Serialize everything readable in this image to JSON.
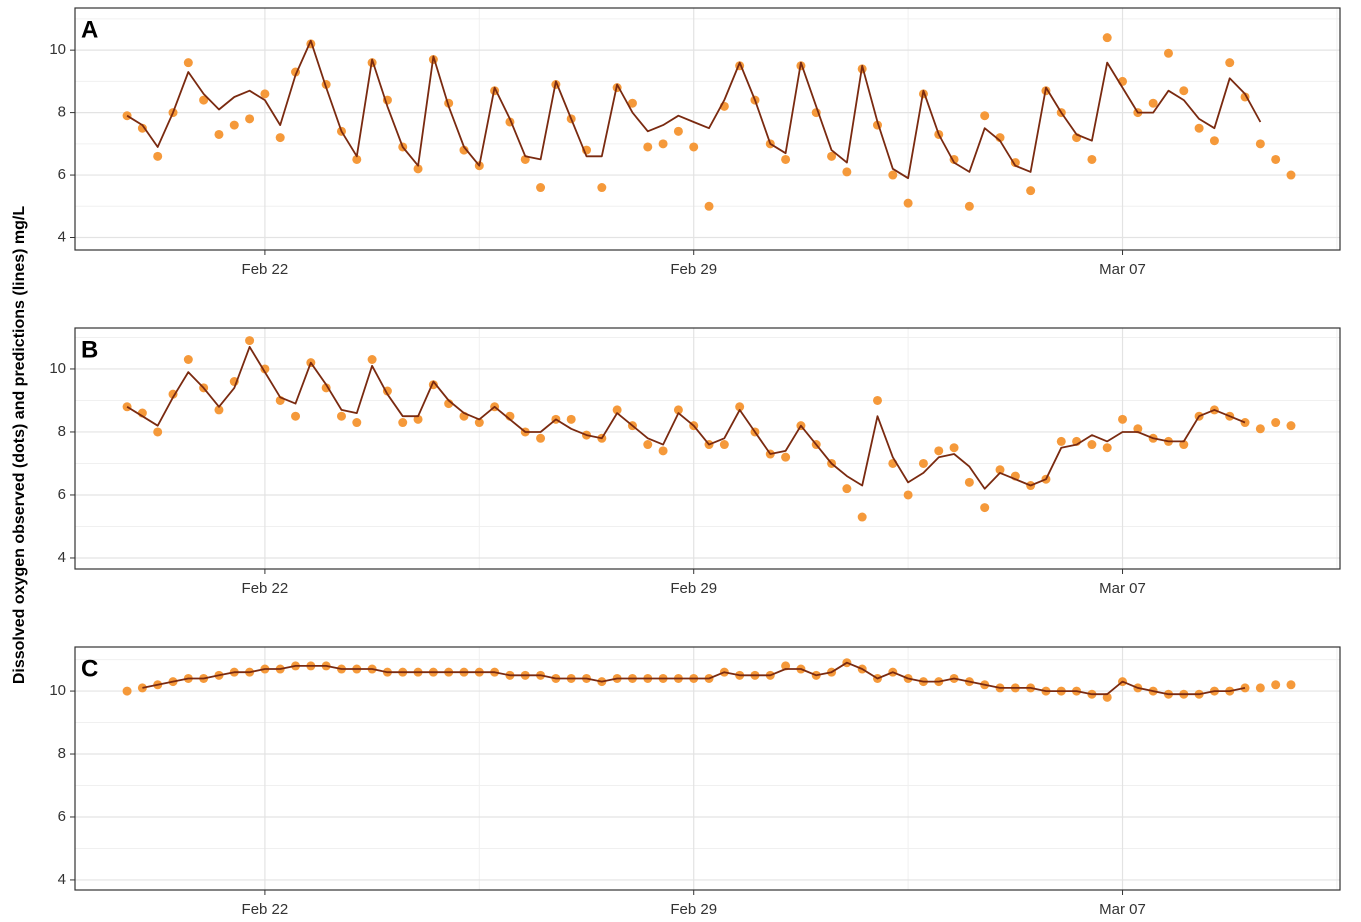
{
  "ylabel": "Dissolved oxygen observed (dots) and predictions (lines) mg/L",
  "chart_data": [
    {
      "type": "line",
      "label": "A",
      "xlim": [
        18.9,
        39.55
      ],
      "xticks": [
        {
          "value": 22,
          "label": "Feb 22"
        },
        {
          "value": 29,
          "label": "Feb 29"
        },
        {
          "value": 36,
          "label": "Mar 07"
        }
      ],
      "xminor": [
        25.5,
        32.5,
        39.5
      ],
      "ylim": [
        3.6,
        11.35
      ],
      "yticks": [
        4,
        6,
        8,
        10
      ],
      "yminor": [
        5,
        7,
        9,
        11
      ],
      "grid": true,
      "x": [
        19.75,
        20,
        20.25,
        20.5,
        20.75,
        21,
        21.25,
        21.5,
        21.75,
        22,
        22.25,
        22.5,
        22.75,
        23,
        23.25,
        23.5,
        23.75,
        24,
        24.25,
        24.5,
        24.75,
        25,
        25.25,
        25.5,
        25.75,
        26,
        26.25,
        26.5,
        26.75,
        27,
        27.25,
        27.5,
        27.75,
        28,
        28.25,
        28.5,
        28.75,
        29,
        29.25,
        29.5,
        29.75,
        30,
        30.25,
        30.5,
        30.75,
        31,
        31.25,
        31.5,
        31.75,
        32,
        32.25,
        32.5,
        32.75,
        33,
        33.25,
        33.5,
        33.75,
        34,
        34.25,
        34.5,
        34.75,
        35,
        35.25,
        35.5,
        35.75,
        36,
        36.25,
        36.5,
        36.75,
        37,
        37.25,
        37.5,
        37.75,
        38,
        38.25,
        38.5,
        38.75
      ],
      "series": [
        {
          "mode": "markers",
          "color": "#f5993a",
          "values": [
            7.9,
            7.5,
            6.6,
            8.0,
            9.6,
            8.4,
            7.3,
            7.6,
            7.8,
            8.6,
            7.2,
            9.3,
            10.2,
            8.9,
            7.4,
            6.5,
            9.6,
            8.4,
            6.9,
            6.2,
            9.7,
            8.3,
            6.8,
            6.3,
            8.7,
            7.7,
            6.5,
            5.6,
            8.9,
            7.8,
            6.8,
            5.6,
            8.8,
            8.3,
            6.9,
            7.0,
            7.4,
            6.9,
            5.0,
            8.2,
            9.5,
            8.4,
            7.0,
            6.5,
            9.5,
            8.0,
            6.6,
            6.1,
            9.4,
            7.6,
            6.0,
            5.1,
            8.6,
            7.3,
            6.5,
            5.0,
            7.9,
            7.2,
            6.4,
            5.5,
            8.7,
            8.0,
            7.2,
            6.5,
            10.4,
            9.0,
            8.0,
            8.3,
            9.9,
            8.7,
            7.5,
            7.1,
            9.6,
            8.5,
            7.0,
            6.5,
            6.0
          ]
        },
        {
          "mode": "lines",
          "color": "#7a2a10",
          "values": [
            7.9,
            7.6,
            6.9,
            8.0,
            9.3,
            8.6,
            8.1,
            8.5,
            8.7,
            8.4,
            7.6,
            9.2,
            10.3,
            8.8,
            7.4,
            6.6,
            9.7,
            8.2,
            6.9,
            6.3,
            9.8,
            8.2,
            6.9,
            6.3,
            8.8,
            7.8,
            6.6,
            6.5,
            9.0,
            7.8,
            6.6,
            6.6,
            8.9,
            8.0,
            7.4,
            7.6,
            7.9,
            7.7,
            7.5,
            8.4,
            9.6,
            8.4,
            7.0,
            6.7,
            9.6,
            8.2,
            6.8,
            6.4,
            9.5,
            7.7,
            6.2,
            5.9,
            8.7,
            7.3,
            6.4,
            6.1,
            7.5,
            7.1,
            6.3,
            6.1,
            8.8,
            8.0,
            7.3,
            7.1,
            9.6,
            8.8,
            8.0,
            8.0,
            8.7,
            8.4,
            7.8,
            7.5,
            9.1,
            8.6,
            7.7,
            null,
            null
          ]
        }
      ]
    },
    {
      "type": "line",
      "label": "B",
      "xlim": [
        18.9,
        39.55
      ],
      "xticks": [
        {
          "value": 22,
          "label": "Feb 22"
        },
        {
          "value": 29,
          "label": "Feb 29"
        },
        {
          "value": 36,
          "label": "Mar 07"
        }
      ],
      "xminor": [
        25.5,
        32.5,
        39.5
      ],
      "ylim": [
        3.65,
        11.3
      ],
      "yticks": [
        4,
        6,
        8,
        10
      ],
      "yminor": [
        5,
        7,
        9,
        11
      ],
      "grid": true,
      "x": [
        19.75,
        20,
        20.25,
        20.5,
        20.75,
        21,
        21.25,
        21.5,
        21.75,
        22,
        22.25,
        22.5,
        22.75,
        23,
        23.25,
        23.5,
        23.75,
        24,
        24.25,
        24.5,
        24.75,
        25,
        25.25,
        25.5,
        25.75,
        26,
        26.25,
        26.5,
        26.75,
        27,
        27.25,
        27.5,
        27.75,
        28,
        28.25,
        28.5,
        28.75,
        29,
        29.25,
        29.5,
        29.75,
        30,
        30.25,
        30.5,
        30.75,
        31,
        31.25,
        31.5,
        31.75,
        32,
        32.25,
        32.5,
        32.75,
        33,
        33.25,
        33.5,
        33.75,
        34,
        34.25,
        34.5,
        34.75,
        35,
        35.25,
        35.5,
        35.75,
        36,
        36.25,
        36.5,
        36.75,
        37,
        37.25,
        37.5,
        37.75,
        38,
        38.25,
        38.5,
        38.75
      ],
      "series": [
        {
          "mode": "markers",
          "color": "#f5993a",
          "values": [
            8.8,
            8.6,
            8.0,
            9.2,
            10.3,
            9.4,
            8.7,
            9.6,
            10.9,
            10.0,
            9.0,
            8.5,
            10.2,
            9.4,
            8.5,
            8.3,
            10.3,
            9.3,
            8.3,
            8.4,
            9.5,
            8.9,
            8.5,
            8.3,
            8.8,
            8.5,
            8.0,
            7.8,
            8.4,
            8.4,
            7.9,
            7.8,
            8.7,
            8.2,
            7.6,
            7.4,
            8.7,
            8.2,
            7.6,
            7.6,
            8.8,
            8.0,
            7.3,
            7.2,
            8.2,
            7.6,
            7.0,
            6.2,
            5.3,
            9.0,
            7.0,
            6.0,
            7.0,
            7.4,
            7.5,
            6.4,
            5.6,
            6.8,
            6.6,
            6.3,
            6.5,
            7.7,
            7.7,
            7.6,
            7.5,
            8.4,
            8.1,
            7.8,
            7.7,
            7.6,
            8.5,
            8.7,
            8.5,
            8.3,
            8.1,
            8.3,
            8.2
          ]
        },
        {
          "mode": "lines",
          "color": "#7a2a10",
          "values": [
            8.8,
            8.5,
            8.2,
            9.1,
            9.9,
            9.4,
            8.8,
            9.4,
            10.7,
            9.9,
            9.1,
            8.9,
            10.2,
            9.5,
            8.7,
            8.6,
            10.1,
            9.2,
            8.5,
            8.5,
            9.6,
            9.0,
            8.6,
            8.4,
            8.8,
            8.4,
            8.0,
            8.0,
            8.4,
            8.1,
            7.9,
            7.8,
            8.6,
            8.2,
            7.8,
            7.6,
            8.6,
            8.2,
            7.6,
            7.8,
            8.7,
            8.0,
            7.3,
            7.4,
            8.2,
            7.6,
            7.0,
            6.6,
            6.3,
            8.5,
            7.2,
            6.4,
            6.7,
            7.2,
            7.3,
            6.9,
            6.2,
            6.7,
            6.5,
            6.3,
            6.5,
            7.5,
            7.6,
            7.9,
            7.7,
            8.0,
            8.0,
            7.8,
            7.7,
            7.7,
            8.5,
            8.7,
            8.5,
            8.3,
            null,
            null,
            null
          ]
        }
      ]
    },
    {
      "type": "line",
      "label": "C",
      "xlim": [
        18.9,
        39.55
      ],
      "xticks": [
        {
          "value": 22,
          "label": "Feb 22"
        },
        {
          "value": 29,
          "label": "Feb 29"
        },
        {
          "value": 36,
          "label": "Mar 07"
        }
      ],
      "xminor": [
        25.5,
        32.5,
        39.5
      ],
      "ylim": [
        3.68,
        11.4
      ],
      "yticks": [
        4,
        6,
        8,
        10
      ],
      "yminor": [
        5,
        7,
        9,
        11
      ],
      "grid": true,
      "x": [
        19.75,
        20,
        20.25,
        20.5,
        20.75,
        21,
        21.25,
        21.5,
        21.75,
        22,
        22.25,
        22.5,
        22.75,
        23,
        23.25,
        23.5,
        23.75,
        24,
        24.25,
        24.5,
        24.75,
        25,
        25.25,
        25.5,
        25.75,
        26,
        26.25,
        26.5,
        26.75,
        27,
        27.25,
        27.5,
        27.75,
        28,
        28.25,
        28.5,
        28.75,
        29,
        29.25,
        29.5,
        29.75,
        30,
        30.25,
        30.5,
        30.75,
        31,
        31.25,
        31.5,
        31.75,
        32,
        32.25,
        32.5,
        32.75,
        33,
        33.25,
        33.5,
        33.75,
        34,
        34.25,
        34.5,
        34.75,
        35,
        35.25,
        35.5,
        35.75,
        36,
        36.25,
        36.5,
        36.75,
        37,
        37.25,
        37.5,
        37.75,
        38,
        38.25,
        38.5,
        38.75
      ],
      "series": [
        {
          "mode": "markers",
          "color": "#f5993a",
          "values": [
            10.0,
            10.1,
            10.2,
            10.3,
            10.4,
            10.4,
            10.5,
            10.6,
            10.6,
            10.7,
            10.7,
            10.8,
            10.8,
            10.8,
            10.7,
            10.7,
            10.7,
            10.6,
            10.6,
            10.6,
            10.6,
            10.6,
            10.6,
            10.6,
            10.6,
            10.5,
            10.5,
            10.5,
            10.4,
            10.4,
            10.4,
            10.3,
            10.4,
            10.4,
            10.4,
            10.4,
            10.4,
            10.4,
            10.4,
            10.6,
            10.5,
            10.5,
            10.5,
            10.8,
            10.7,
            10.5,
            10.6,
            10.9,
            10.7,
            10.4,
            10.6,
            10.4,
            10.3,
            10.3,
            10.4,
            10.3,
            10.2,
            10.1,
            10.1,
            10.1,
            10.0,
            10.0,
            10.0,
            9.9,
            9.8,
            10.3,
            10.1,
            10.0,
            9.9,
            9.9,
            9.9,
            10.0,
            10.0,
            10.1,
            10.1,
            10.2,
            10.2
          ]
        },
        {
          "mode": "lines",
          "color": "#7a2a10",
          "values": [
            null,
            10.1,
            10.2,
            10.3,
            10.4,
            10.4,
            10.5,
            10.6,
            10.6,
            10.7,
            10.7,
            10.8,
            10.8,
            10.8,
            10.7,
            10.7,
            10.7,
            10.6,
            10.6,
            10.6,
            10.6,
            10.6,
            10.6,
            10.6,
            10.6,
            10.5,
            10.5,
            10.5,
            10.4,
            10.4,
            10.4,
            10.3,
            10.4,
            10.4,
            10.4,
            10.4,
            10.4,
            10.4,
            10.4,
            10.6,
            10.5,
            10.5,
            10.5,
            10.7,
            10.7,
            10.5,
            10.6,
            10.9,
            10.7,
            10.4,
            10.6,
            10.4,
            10.3,
            10.3,
            10.4,
            10.3,
            10.2,
            10.1,
            10.1,
            10.1,
            10.0,
            10.0,
            10.0,
            9.9,
            9.9,
            10.3,
            10.1,
            10.0,
            9.9,
            9.9,
            9.9,
            10.0,
            10.0,
            10.1,
            null,
            null,
            null
          ]
        }
      ]
    }
  ]
}
